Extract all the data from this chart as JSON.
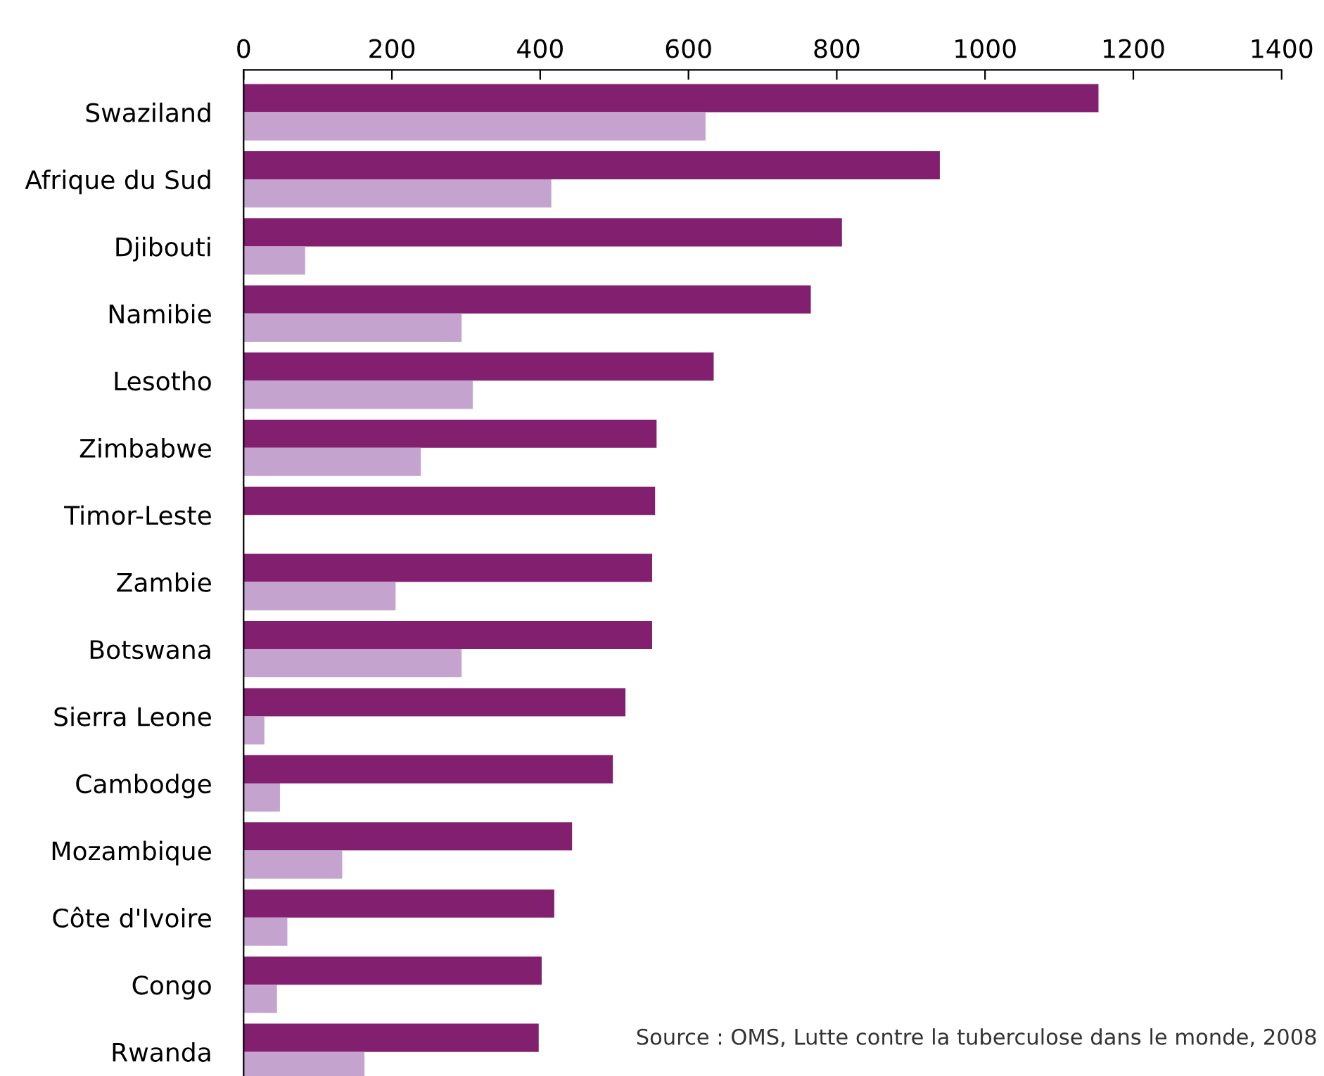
{
  "chart_data": {
    "type": "bar",
    "orientation": "horizontal",
    "categories": [
      "Swaziland",
      "Afrique du Sud",
      "Djibouti",
      "Namibie",
      "Lesotho",
      "Zimbabwe",
      "Timor-Leste",
      "Zambie",
      "Botswana",
      "Sierra Leone",
      "Cambodge",
      "Mozambique",
      "Côte d'Ivoire",
      "Congo",
      "Rwanda"
    ],
    "series": [
      {
        "color": "#82206f",
        "values": [
          1153,
          939,
          807,
          765,
          634,
          557,
          555,
          551,
          551,
          515,
          498,
          443,
          419,
          402,
          398
        ]
      },
      {
        "color": "#c4a3ce",
        "values": [
          623,
          415,
          83,
          294,
          309,
          239,
          null,
          205,
          294,
          28,
          49,
          133,
          59,
          45,
          163
        ]
      }
    ],
    "xlim": [
      0,
      1400
    ],
    "xticks": [
      0,
      200,
      400,
      600,
      800,
      1000,
      1200,
      1400
    ],
    "annotations": [
      "Source : OMS, Lutte contre la tuberculose dans le monde, 2008"
    ],
    "grid": false,
    "legend": false
  }
}
